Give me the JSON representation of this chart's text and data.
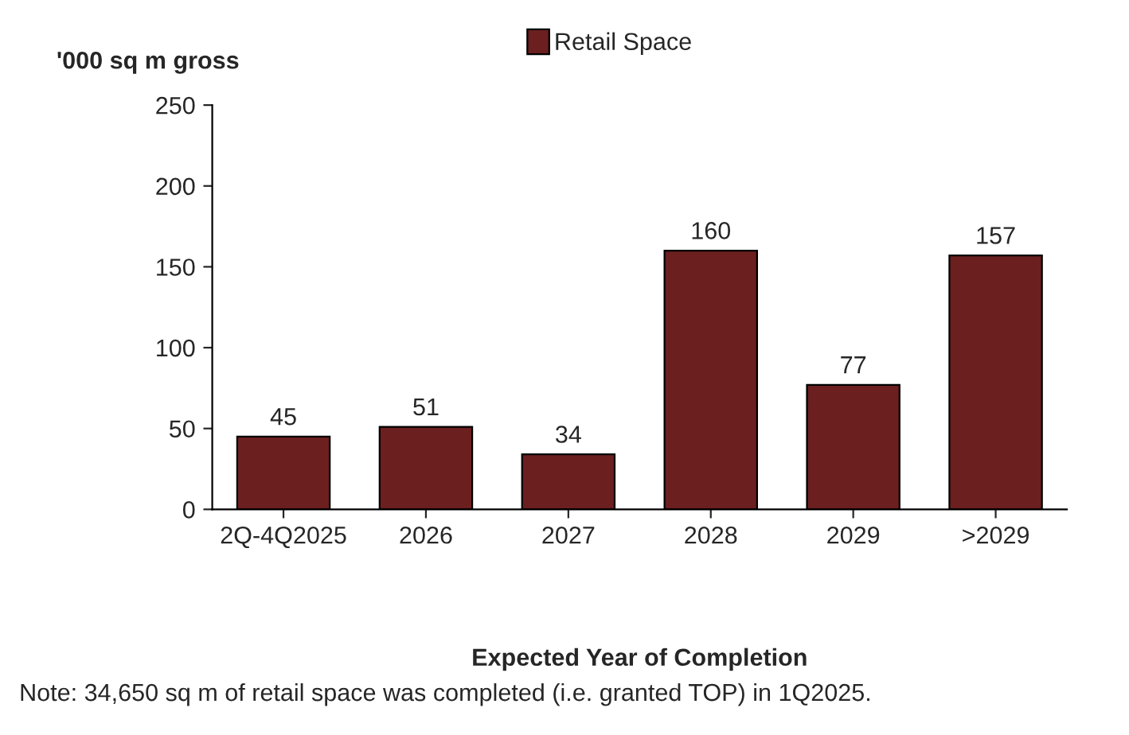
{
  "chart_data": {
    "type": "bar",
    "ylabel": "'000 sq m gross",
    "xlabel": "Expected Year of Completion",
    "categories": [
      "2Q-4Q2025",
      "2026",
      "2027",
      "2028",
      "2029",
      ">2029"
    ],
    "series": [
      {
        "name": "Retail Space",
        "color": "#6b1f1f",
        "values": [
          45,
          51,
          34,
          160,
          77,
          157
        ]
      }
    ],
    "ylim": [
      0,
      250
    ],
    "yticks": [
      0,
      50,
      100,
      150,
      200,
      250
    ],
    "data_labels": true,
    "legend": "top",
    "grid": false,
    "annotations": [
      "Note: 34,650 sq m of retail space was completed (i.e. granted TOP) in 1Q2025."
    ]
  }
}
